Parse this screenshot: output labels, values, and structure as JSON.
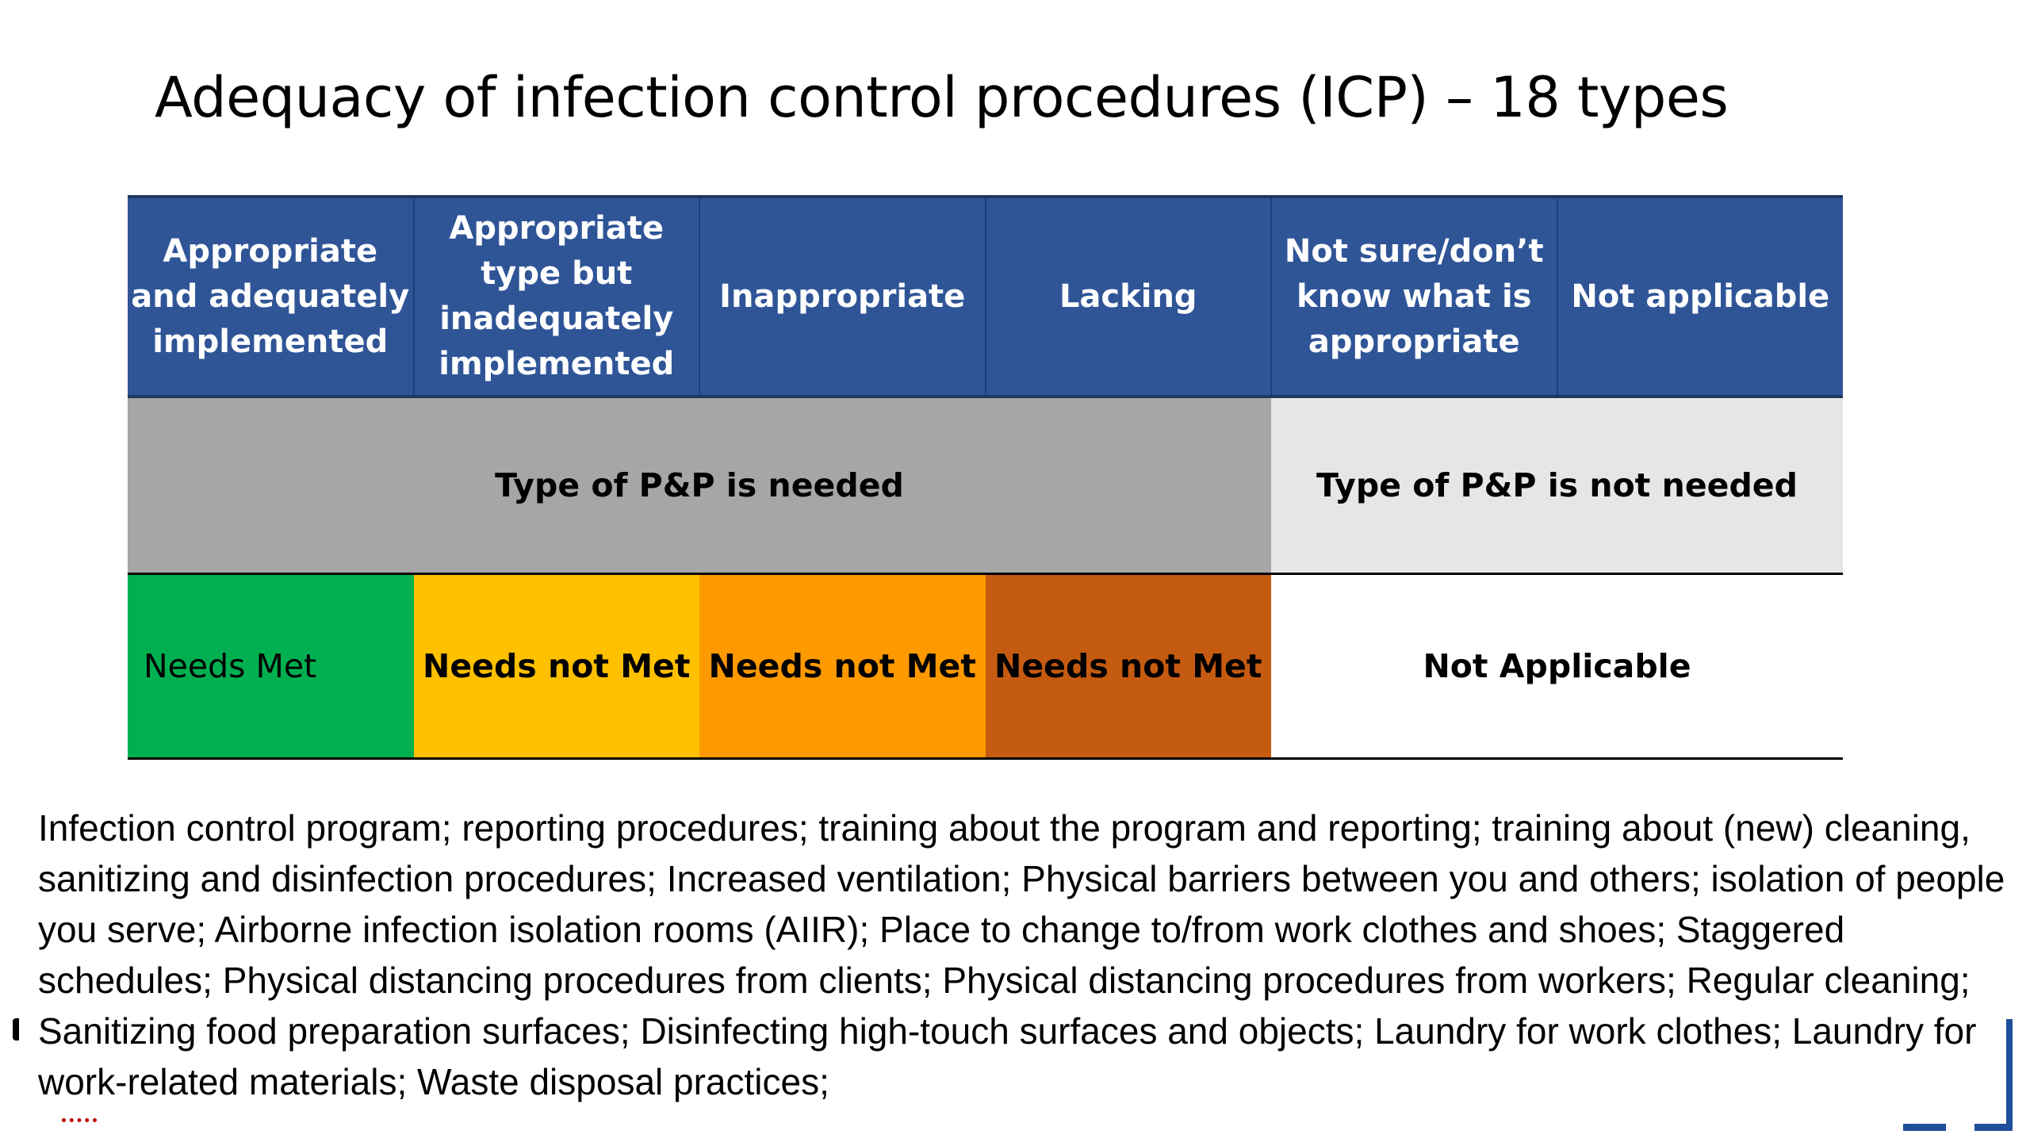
{
  "title": "Adequacy of infection control procedures (ICP) – 18 types",
  "table": {
    "headers": [
      "Appropriate and adequately implemented",
      "Appropriate type but inadequately implemented",
      "Inappropriate",
      "Lacking",
      "Not sure/don’t know what is appropriate",
      "Not applicable"
    ],
    "need_row": {
      "needed": "Type of P&P is needed",
      "not_needed": "Type of P&P is not needed"
    },
    "status_row": {
      "met": "Needs Met",
      "not_met_1": "Needs not Met",
      "not_met_2": "Needs not Met",
      "not_met_3": "Needs not Met",
      "not_applicable": "Not Applicable"
    }
  },
  "types_text": "Infection control program; reporting procedures; training about the program and reporting; training about (new) cleaning, sanitizing and disinfection procedures; Increased ventilation; Physical barriers between you and others; isolation of people you serve; Airborne infection isolation rooms (AIIR); Place to change to/from work clothes and shoes; Staggered schedules; Physical distancing procedures from clients; Physical distancing procedures from workers; Regular cleaning; Sanitizing food preparation surfaces; Disinfecting high-touch surfaces and objects; Laundry for work clothes; Laundry for work-related materials; Waste disposal practices;",
  "colors": {
    "header_blue": "#2f5597",
    "needed_gray": "#a6a6a6",
    "not_needed_gray": "#e7e6e6",
    "needs_met_green": "#00b050",
    "not_met_yellow": "#ffc000",
    "not_met_orange": "#ff9900",
    "not_met_brown": "#c55a11"
  }
}
